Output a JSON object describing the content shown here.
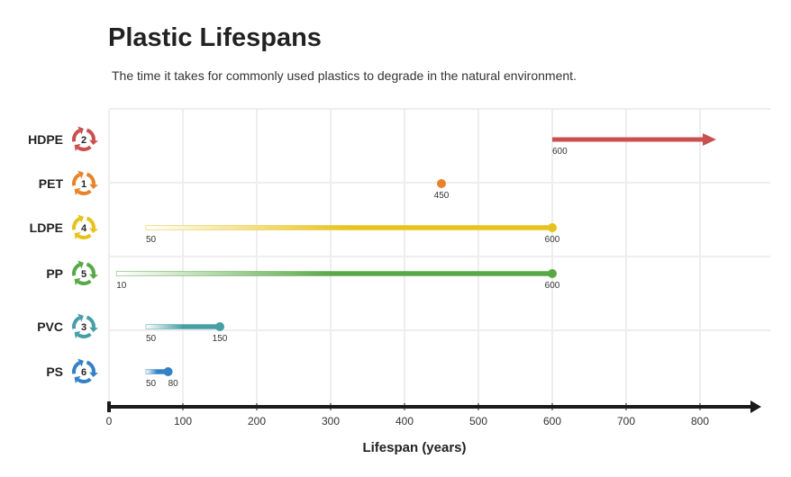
{
  "chart_data": {
    "type": "range",
    "title": "Plastic Lifespans",
    "subtitle": "The time it takes for commonly used plastics to degrade in the natural environment.",
    "xlabel": "Lifespan (years)",
    "xlim": [
      0,
      880
    ],
    "xticks": [
      0,
      100,
      200,
      300,
      400,
      500,
      600,
      700,
      800
    ],
    "grid": true,
    "series": [
      {
        "category": "HDPE",
        "code": "2",
        "min": 600,
        "max": null,
        "min_label": "600",
        "max_label": "",
        "open_ended": true,
        "color": "#c8514f"
      },
      {
        "category": "PET",
        "code": "1",
        "min": 450,
        "max": 450,
        "min_label": "",
        "max_label": "450",
        "open_ended": false,
        "color": "#e8832b"
      },
      {
        "category": "LDPE",
        "code": "4",
        "min": 50,
        "max": 600,
        "min_label": "50",
        "max_label": "600",
        "open_ended": false,
        "color": "#e8c21c"
      },
      {
        "category": "PP",
        "code": "5",
        "min": 10,
        "max": 600,
        "min_label": "10",
        "max_label": "600",
        "open_ended": false,
        "color": "#58a846"
      },
      {
        "category": "PVC",
        "code": "3",
        "min": 50,
        "max": 150,
        "min_label": "50",
        "max_label": "150",
        "open_ended": false,
        "color": "#479fa5"
      },
      {
        "category": "PS",
        "code": "6",
        "min": 50,
        "max": 80,
        "min_label": "50",
        "max_label": "80",
        "open_ended": false,
        "color": "#3481c6"
      }
    ]
  }
}
